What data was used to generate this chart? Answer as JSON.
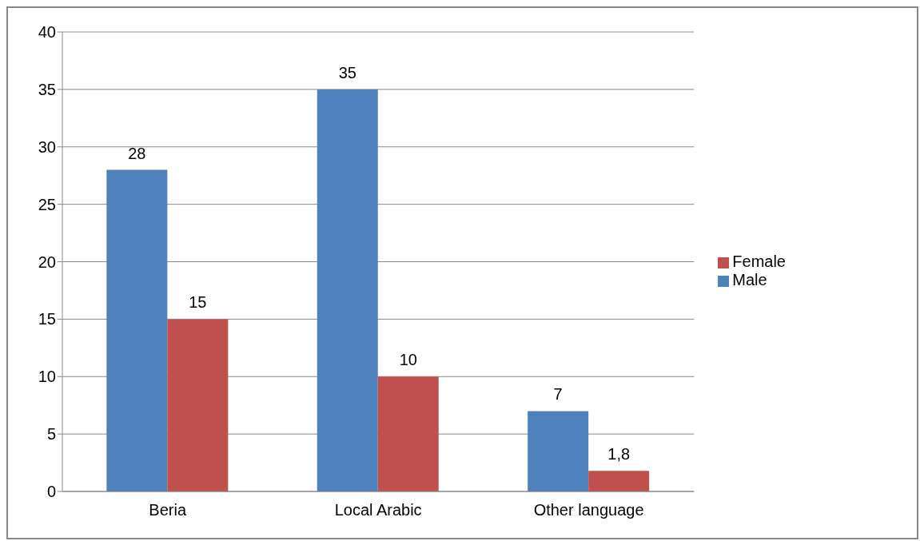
{
  "chart_data": {
    "type": "bar",
    "categories": [
      "Beria",
      "Local Arabic",
      "Other language"
    ],
    "series": [
      {
        "name": "Male",
        "color": "#4f81bd",
        "values": [
          28,
          35,
          7
        ],
        "value_labels": [
          "28",
          "35",
          "7"
        ]
      },
      {
        "name": "Female",
        "color": "#c0504d",
        "values": [
          15,
          10,
          1.8
        ],
        "value_labels": [
          "15",
          "10",
          "1,8"
        ]
      }
    ],
    "ylim": [
      0,
      40
    ],
    "yticks": [
      0,
      5,
      10,
      15,
      20,
      25,
      30,
      35,
      40
    ],
    "grid": "y",
    "legend": "right"
  }
}
